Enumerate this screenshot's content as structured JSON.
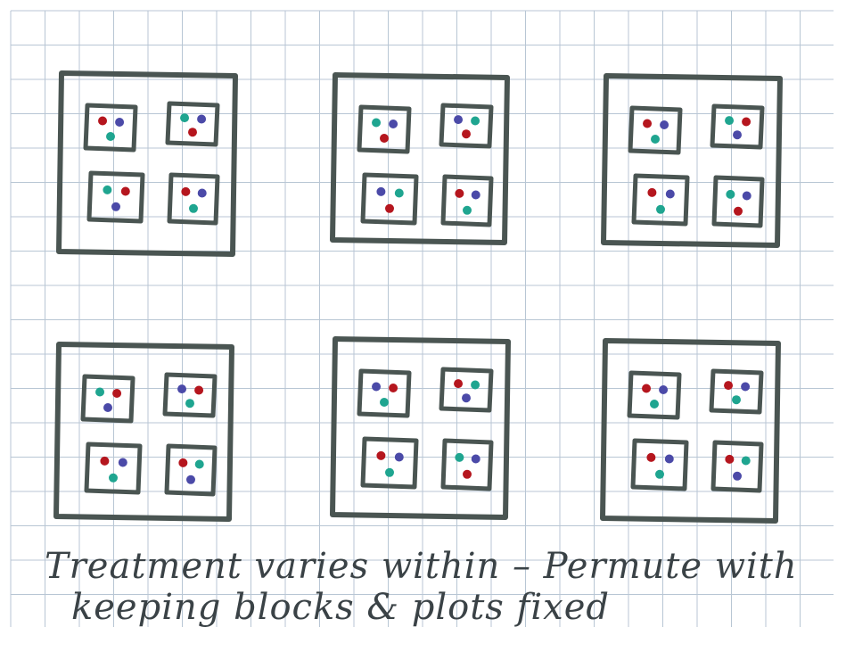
{
  "caption": {
    "line1": "Treatment varies within – Permute with",
    "line2": "keeping blocks & plots fixed"
  },
  "colors": {
    "grid": "#b8c6d4",
    "ink": "#4a5552",
    "red": "#b5161e",
    "blue": "#4b4aa8",
    "teal": "#1fa590"
  },
  "panels": [
    {
      "plots": [
        [
          "red",
          "blue",
          "teal"
        ],
        [
          "teal",
          "blue",
          "red"
        ],
        [
          "teal",
          "red",
          "blue"
        ],
        [
          "red",
          "blue",
          "teal"
        ]
      ]
    },
    {
      "plots": [
        [
          "teal",
          "blue",
          "red"
        ],
        [
          "blue",
          "teal",
          "red"
        ],
        [
          "blue",
          "teal",
          "red"
        ],
        [
          "red",
          "blue",
          "teal"
        ]
      ]
    },
    {
      "plots": [
        [
          "red",
          "blue",
          "teal"
        ],
        [
          "teal",
          "red",
          "blue"
        ],
        [
          "red",
          "blue",
          "teal"
        ],
        [
          "teal",
          "blue",
          "red"
        ]
      ]
    },
    {
      "plots": [
        [
          "teal",
          "red",
          "blue"
        ],
        [
          "blue",
          "red",
          "teal"
        ],
        [
          "red",
          "blue",
          "teal"
        ],
        [
          "red",
          "teal",
          "blue"
        ]
      ]
    },
    {
      "plots": [
        [
          "blue",
          "red",
          "teal"
        ],
        [
          "red",
          "teal",
          "blue"
        ],
        [
          "red",
          "blue",
          "teal"
        ],
        [
          "teal",
          "blue",
          "red"
        ]
      ]
    },
    {
      "plots": [
        [
          "red",
          "blue",
          "teal"
        ],
        [
          "red",
          "blue",
          "teal"
        ],
        [
          "red",
          "blue",
          "teal"
        ],
        [
          "red",
          "teal",
          "blue"
        ]
      ]
    }
  ]
}
